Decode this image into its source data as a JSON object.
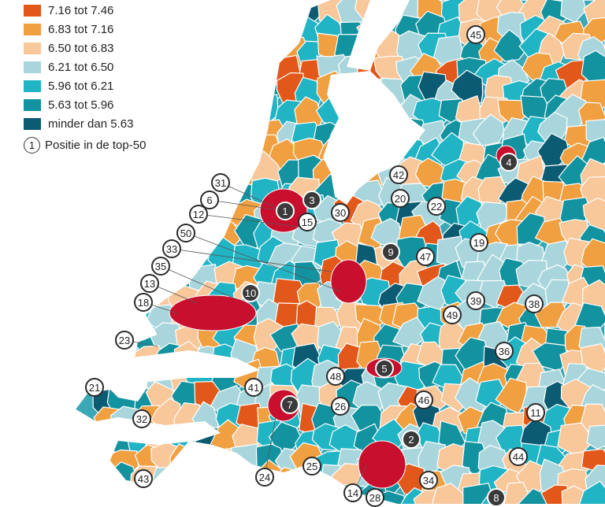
{
  "legend": {
    "classes": [
      {
        "label": "7.16 tot 7.46",
        "color": "#e2581a"
      },
      {
        "label": "6.83 tot 7.16",
        "color": "#f0a040"
      },
      {
        "label": "6.50 tot 6.83",
        "color": "#f8c79a"
      },
      {
        "label": "6.21 tot 6.50",
        "color": "#a9d6dc"
      },
      {
        "label": "5.96 tot 6.21",
        "color": "#21b4c4"
      },
      {
        "label": "5.63 tot 5.96",
        "color": "#12939f"
      },
      {
        "label": "minder dan 5.63",
        "color": "#0b5c72"
      }
    ],
    "marker_symbol": "1",
    "marker_label": "Positie in de top-50"
  },
  "top50_highlight_color": "#c8102e",
  "rank_markers": [
    "45",
    "4",
    "3",
    "1",
    "15",
    "30",
    "31",
    "6",
    "12",
    "50",
    "33",
    "35",
    "13",
    "18",
    "10",
    "9",
    "42",
    "20",
    "22",
    "47",
    "19",
    "39",
    "49",
    "38",
    "23",
    "21",
    "32",
    "43",
    "41",
    "48",
    "7",
    "5",
    "26",
    "46",
    "2",
    "11",
    "36",
    "25",
    "24",
    "44",
    "34",
    "14",
    "28",
    "8"
  ]
}
